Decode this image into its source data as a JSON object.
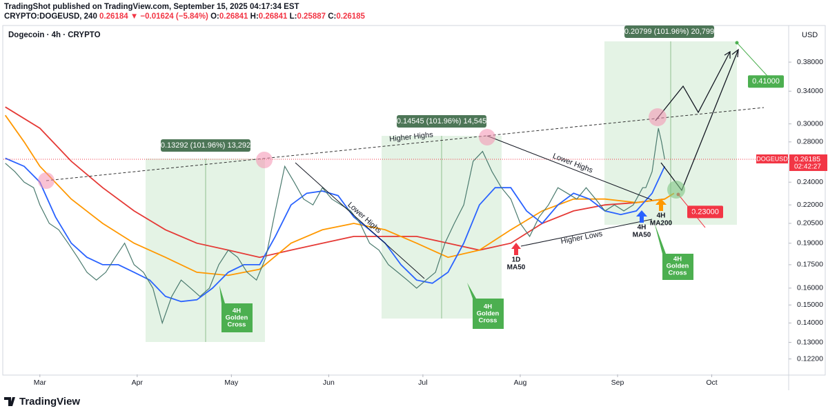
{
  "header": {
    "publisher": "TradingShot published on TradingView.com, September 15, 2025 04:17:34 EST",
    "symbol": "CRYPTO:DOGEUSD, 240",
    "last": "0.26184",
    "arrow": "▼",
    "change": "−0.01624 (−5.84%)",
    "o_label": "O:",
    "open": "0.26841",
    "h_label": "H:",
    "high": "0.26841",
    "l_label": "L:",
    "low": "0.25887",
    "c_label": "C:",
    "close": "0.26185"
  },
  "footer": {
    "brand": "TradingView"
  },
  "chart_data": {
    "type": "line",
    "title": "Dogecoin · 4h · CRYPTO",
    "currency": "USD",
    "log_scale": true,
    "grid": false,
    "xlim": [
      -11.6,
      238.5
    ],
    "xticks": [
      {
        "value": 0,
        "label": "Mar"
      },
      {
        "value": 31,
        "label": "Apr"
      },
      {
        "value": 61,
        "label": "May"
      },
      {
        "value": 92,
        "label": "Jun"
      },
      {
        "value": 122,
        "label": "Jul"
      },
      {
        "value": 153,
        "label": "Aug"
      },
      {
        "value": 184,
        "label": "Sep"
      },
      {
        "value": 214,
        "label": "Oct"
      }
    ],
    "ylim": [
      0.115,
      0.436
    ],
    "yticks": [
      {
        "value": 0.122,
        "label": "0.12200"
      },
      {
        "value": 0.13,
        "label": "0.13000"
      },
      {
        "value": 0.14,
        "label": "0.14000"
      },
      {
        "value": 0.15,
        "label": "0.15000"
      },
      {
        "value": 0.16,
        "label": "0.16000"
      },
      {
        "value": 0.175,
        "label": "0.17500"
      },
      {
        "value": 0.19,
        "label": "0.19000"
      },
      {
        "value": 0.205,
        "label": "0.20500"
      },
      {
        "value": 0.22,
        "label": "0.22000"
      },
      {
        "value": 0.24,
        "label": "0.24000"
      },
      {
        "value": 0.28,
        "label": "0.28000"
      },
      {
        "value": 0.3,
        "label": "0.30000"
      },
      {
        "value": 0.34,
        "label": "0.34000"
      },
      {
        "value": 0.38,
        "label": "0.38000"
      }
    ],
    "series": [
      {
        "color": "#4a7a6e",
        "x": [
          -11,
          -8,
          -5,
          -2,
          0,
          3,
          6,
          9,
          12,
          15,
          18,
          21,
          24,
          27,
          30,
          33,
          36,
          39,
          42,
          45,
          48,
          51,
          54,
          57,
          60,
          63,
          66,
          69,
          72,
          75,
          78,
          81,
          84,
          87,
          90,
          93,
          96,
          99,
          102,
          105,
          108,
          111,
          114,
          117,
          120,
          123,
          126,
          129,
          132,
          135,
          138,
          141,
          144,
          147,
          150,
          153,
          156,
          159,
          162,
          165,
          168,
          171,
          174,
          177,
          180,
          183,
          186,
          189,
          192,
          193,
          195,
          197,
          198,
          199
        ],
        "values": [
          0.258,
          0.25,
          0.24,
          0.235,
          0.22,
          0.205,
          0.2,
          0.19,
          0.18,
          0.17,
          0.165,
          0.17,
          0.18,
          0.19,
          0.175,
          0.17,
          0.16,
          0.14,
          0.155,
          0.165,
          0.16,
          0.155,
          0.16,
          0.175,
          0.185,
          0.18,
          0.17,
          0.165,
          0.18,
          0.215,
          0.255,
          0.24,
          0.225,
          0.22,
          0.235,
          0.225,
          0.22,
          0.215,
          0.205,
          0.19,
          0.185,
          0.175,
          0.17,
          0.165,
          0.16,
          0.165,
          0.17,
          0.19,
          0.205,
          0.22,
          0.26,
          0.27,
          0.25,
          0.235,
          0.225,
          0.205,
          0.195,
          0.21,
          0.22,
          0.235,
          0.23,
          0.225,
          0.235,
          0.225,
          0.215,
          0.22,
          0.215,
          0.22,
          0.235,
          0.235,
          0.25,
          0.295,
          0.28,
          0.262
        ]
      },
      {
        "color": "#2962ff",
        "x": [
          -11,
          -5,
          0,
          5,
          10,
          15,
          20,
          25,
          30,
          35,
          40,
          45,
          50,
          55,
          60,
          65,
          70,
          75,
          80,
          85,
          90,
          95,
          100,
          105,
          110,
          115,
          120,
          125,
          130,
          135,
          140,
          145,
          150,
          155,
          160,
          165,
          170,
          175,
          180,
          185,
          190,
          195,
          199
        ],
        "values": [
          0.263,
          0.255,
          0.24,
          0.21,
          0.19,
          0.18,
          0.175,
          0.175,
          0.17,
          0.165,
          0.155,
          0.152,
          0.153,
          0.16,
          0.17,
          0.175,
          0.175,
          0.195,
          0.22,
          0.23,
          0.232,
          0.228,
          0.21,
          0.2,
          0.19,
          0.175,
          0.165,
          0.163,
          0.17,
          0.19,
          0.22,
          0.235,
          0.235,
          0.215,
          0.205,
          0.22,
          0.23,
          0.225,
          0.215,
          0.212,
          0.215,
          0.23,
          0.255
        ]
      },
      {
        "color": "#ff9800",
        "x": [
          -11,
          -5,
          0,
          10,
          20,
          30,
          40,
          50,
          60,
          70,
          80,
          90,
          100,
          110,
          120,
          130,
          140,
          150,
          160,
          170,
          180,
          190,
          199,
          202
        ],
        "values": [
          0.31,
          0.28,
          0.255,
          0.225,
          0.205,
          0.19,
          0.18,
          0.17,
          0.168,
          0.172,
          0.19,
          0.2,
          0.205,
          0.2,
          0.19,
          0.18,
          0.185,
          0.2,
          0.215,
          0.225,
          0.225,
          0.222,
          0.225,
          0.23
        ]
      },
      {
        "color": "#e53935",
        "x": [
          -11,
          0,
          10,
          20,
          30,
          40,
          50,
          60,
          70,
          80,
          90,
          100,
          110,
          120,
          130,
          140,
          150,
          160,
          170,
          180,
          190,
          199
        ],
        "values": [
          0.32,
          0.295,
          0.26,
          0.235,
          0.215,
          0.2,
          0.19,
          0.185,
          0.18,
          0.185,
          0.19,
          0.195,
          0.195,
          0.195,
          0.19,
          0.185,
          0.19,
          0.205,
          0.215,
          0.22,
          0.222,
          0.225
        ]
      }
    ],
    "targets": [
      {
        "value": 0.41,
        "label": "0.41000",
        "color": "#4caf50"
      },
      {
        "value": 0.23,
        "label": "0.23000",
        "color": "#f23645"
      }
    ],
    "price_tag": {
      "name": "DOGEUSD",
      "price": "0.26185",
      "countdown": "02:42:27"
    },
    "annotations": {
      "range1": "0.13292 (101.96%) 13,292",
      "range2": "0.14545 (101.96%) 14,545",
      "range3": "0.20799 (101.96%) 20,799",
      "higher_highs": "Higher Highs",
      "lower_highs": "Lower Highs",
      "higher_lows": "Higher Lows",
      "golden_cross": [
        "4H",
        "Golden",
        "Cross"
      ],
      "d1_ma50": [
        "1D",
        "MA50"
      ],
      "h4_ma50": [
        "4H",
        "MA50"
      ],
      "h4_ma200": [
        "4H",
        "MA200"
      ]
    }
  }
}
